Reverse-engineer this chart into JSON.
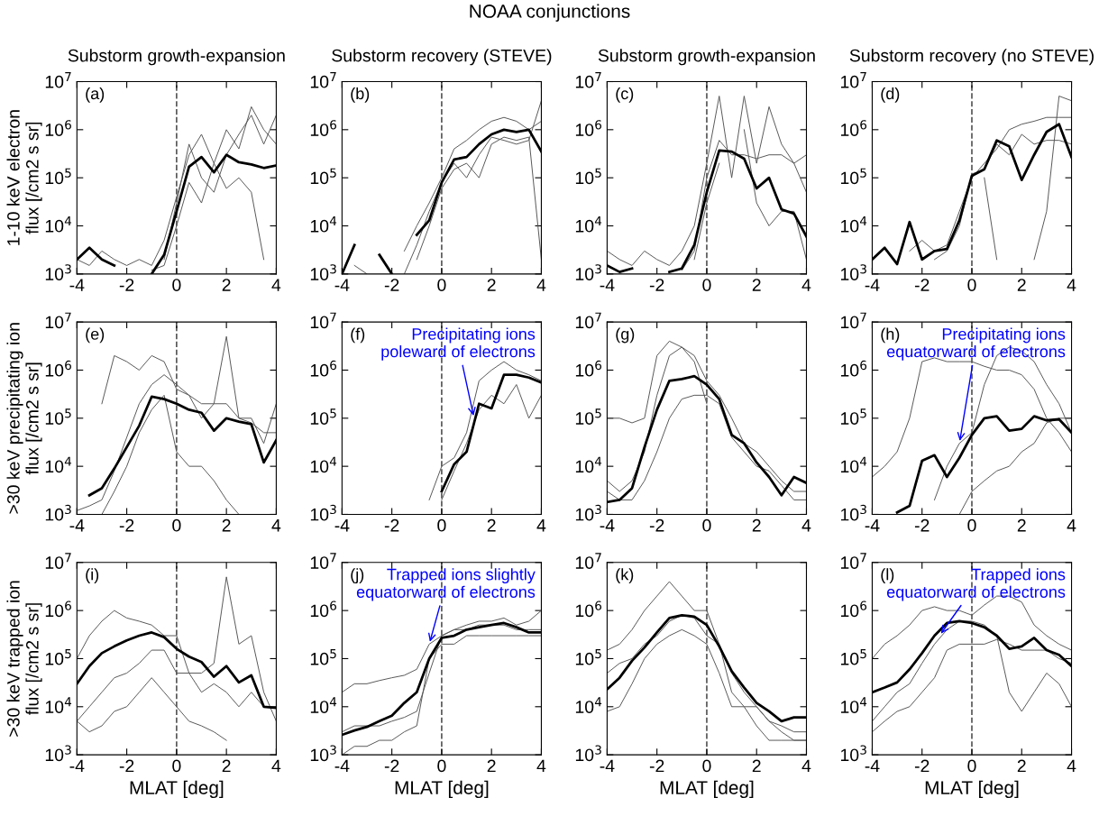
{
  "chart_data": [
    {
      "type": "other",
      "title": "NOAA conjunctions"
    },
    {
      "type": "line",
      "title": "Substorm growth-expansion",
      "ylabel": "1-10 keV electron\nflux [/cm2 s sr]",
      "annotations": [
        "(a)"
      ],
      "log": "y",
      "xlim": [
        -4,
        4
      ],
      "xticks": [
        -4,
        -2,
        0,
        2,
        4
      ],
      "ylim": [
        1000,
        10000000
      ],
      "yticks": [
        {
          "value": 1000,
          "label": "10$^{3}$"
        },
        {
          "value": 10000,
          "label": "10$^{4}$"
        },
        {
          "value": 100000,
          "label": "10$^{5}$"
        },
        {
          "value": 1000000,
          "label": "10$^{6}$"
        },
        {
          "value": 10000000,
          "label": "10$^{7}$"
        }
      ],
      "ref_lines": [
        {
          "axis": "x",
          "value": 0,
          "label": null,
          "color": "#555555",
          "line_style": "dashed"
        }
      ],
      "x": [
        -4,
        -3.5,
        -3,
        -2.5,
        -2,
        -1.5,
        -1,
        -0.5,
        0,
        0.5,
        1,
        1.5,
        2,
        2.5,
        3,
        3.5,
        4
      ],
      "series": [
        {
          "color": "#000000",
          "values": [
            2000.0,
            3500.0,
            2000.0,
            1500.0,
            null,
            null,
            1000.0,
            2500.0,
            20000.0,
            170000.0,
            270000.0,
            130000.0,
            300000.0,
            210000.0,
            190000.0,
            160000.0,
            180000.0
          ]
        },
        {
          "color": "#555555",
          "values": [
            2000.0,
            1500.0,
            3000.0,
            2000.0,
            1500.0,
            2000.0,
            1500.0,
            5000.0,
            40000.0,
            300000.0,
            800000.0,
            200000.0,
            1000000.0,
            400000.0,
            3000000.0,
            1000000.0,
            500000.0
          ]
        },
        {
          "color": "#555555",
          "values": [
            null,
            null,
            null,
            null,
            null,
            null,
            null,
            2000.0,
            30000.0,
            500000.0,
            100000.0,
            50000.0,
            300000.0,
            800000.0,
            2000000.0,
            500000.0,
            2000000.0
          ]
        },
        {
          "color": "#555555",
          "values": [
            null,
            null,
            null,
            null,
            null,
            null,
            1200.0,
            1500.0,
            10000.0,
            80000.0,
            30000.0,
            200000.0,
            60000.0,
            100000.0,
            50000.0,
            2000.0,
            null
          ]
        }
      ]
    },
    {
      "type": "line",
      "title": "Substorm recovery (STEVE)",
      "annotations": [
        "(b)"
      ],
      "log": "y",
      "xlim": [
        -4,
        4
      ],
      "xticks": [
        -4,
        -2,
        0,
        2,
        4
      ],
      "ylim": [
        1000,
        10000000
      ],
      "yticks": [
        {
          "value": 1000,
          "label": "10$^{3}$"
        },
        {
          "value": 10000,
          "label": "10$^{4}$"
        },
        {
          "value": 100000,
          "label": "10$^{5}$"
        },
        {
          "value": 1000000,
          "label": "10$^{6}$"
        },
        {
          "value": 10000000,
          "label": "10$^{7}$"
        }
      ],
      "ref_lines": [
        {
          "axis": "x",
          "value": 0,
          "label": null,
          "color": "#555555",
          "line_style": "dashed"
        }
      ],
      "x": [
        -4,
        -3.5,
        -3,
        -2.5,
        -2,
        -1.5,
        -1,
        -0.5,
        0,
        0.5,
        1,
        1.5,
        2,
        2.5,
        3,
        3.5,
        4
      ],
      "series": [
        {
          "color": "#000000",
          "values": [
            1000.0,
            4000.0,
            null,
            2500.0,
            1000.0,
            null,
            6500.0,
            13000.0,
            80000.0,
            240000.0,
            270000.0,
            500000.0,
            800000.0,
            1000000.0,
            900000.0,
            1000000.0,
            350000.0
          ]
        },
        {
          "color": "#555555",
          "values": [
            null,
            1500.0,
            1000.0,
            null,
            null,
            3000.0,
            10000.0,
            30000.0,
            100000.0,
            400000.0,
            600000.0,
            1000000.0,
            1500000.0,
            1800000.0,
            1500000.0,
            1000000.0,
            1500000.0
          ]
        },
        {
          "color": "#555555",
          "values": [
            null,
            null,
            null,
            null,
            null,
            1000.0,
            4000.0,
            20000.0,
            80000.0,
            200000.0,
            100000.0,
            300000.0,
            700000.0,
            600000.0,
            500000.0,
            600000.0,
            4000000.0
          ]
        },
        {
          "color": "#555555",
          "values": [
            null,
            null,
            null,
            null,
            null,
            null,
            2000.0,
            10000.0,
            60000.0,
            150000.0,
            200000.0,
            100000.0,
            500000.0,
            700000.0,
            600000.0,
            700000.0,
            2000.0
          ]
        }
      ]
    },
    {
      "type": "line",
      "title": "Substorm growth-expansion",
      "annotations": [
        "(c)"
      ],
      "log": "y",
      "xlim": [
        -4,
        4
      ],
      "xticks": [
        -4,
        -2,
        0,
        2,
        4
      ],
      "ylim": [
        1000,
        10000000
      ],
      "yticks": [
        {
          "value": 1000,
          "label": "10$^{3}$"
        },
        {
          "value": 10000,
          "label": "10$^{4}$"
        },
        {
          "value": 100000,
          "label": "10$^{5}$"
        },
        {
          "value": 1000000,
          "label": "10$^{6}$"
        },
        {
          "value": 10000000,
          "label": "10$^{7}$"
        }
      ],
      "ref_lines": [
        {
          "axis": "x",
          "value": 0,
          "label": null,
          "color": "#555555",
          "line_style": "dashed"
        }
      ],
      "x": [
        -4,
        -3.5,
        -3,
        -2.5,
        -2,
        -1.5,
        -1,
        -0.5,
        0,
        0.5,
        1,
        1.5,
        2,
        2.5,
        3,
        3.5,
        4
      ],
      "series": [
        {
          "color": "#000000",
          "values": [
            1500.0,
            1100.0,
            1300.0,
            null,
            null,
            1100.0,
            1300.0,
            4000.0,
            50000.0,
            370000.0,
            350000.0,
            250000.0,
            60000.0,
            100000.0,
            22000.0,
            18000.0,
            6000.0
          ]
        },
        {
          "color": "#555555",
          "values": [
            3000.0,
            2000.0,
            1500.0,
            3000.0,
            2000.0,
            1500.0,
            3000.0,
            10000.0,
            200000.0,
            5000000.0,
            100000.0,
            5000000.0,
            200000.0,
            3000000.0,
            500000.0,
            200000.0,
            50000.0
          ]
        },
        {
          "color": "#555555",
          "values": [
            null,
            null,
            null,
            null,
            null,
            null,
            1200.0,
            3000.0,
            100000.0,
            600000.0,
            300000.0,
            300000.0,
            250000.0,
            300000.0,
            300000.0,
            200000.0,
            300000.0
          ]
        },
        {
          "color": "#555555",
          "values": [
            null,
            null,
            null,
            null,
            null,
            null,
            null,
            2000.0,
            30000.0,
            200000.0,
            null,
            1000000.0,
            30000.0,
            10000.0,
            20000.0,
            20000.0,
            2000.0
          ]
        }
      ]
    },
    {
      "type": "line",
      "title": "Substorm recovery (no STEVE)",
      "annotations": [
        "(d)"
      ],
      "log": "y",
      "xlim": [
        -4,
        4
      ],
      "xticks": [
        -4,
        -2,
        0,
        2,
        4
      ],
      "ylim": [
        1000,
        10000000
      ],
      "yticks": [
        {
          "value": 1000,
          "label": "10$^{3}$"
        },
        {
          "value": 10000,
          "label": "10$^{4}$"
        },
        {
          "value": 100000,
          "label": "10$^{5}$"
        },
        {
          "value": 1000000,
          "label": "10$^{6}$"
        },
        {
          "value": 10000000,
          "label": "10$^{7}$"
        }
      ],
      "ref_lines": [
        {
          "axis": "x",
          "value": 0,
          "label": null,
          "color": "#555555",
          "line_style": "dashed"
        }
      ],
      "x": [
        -4,
        -3.5,
        -3,
        -2.5,
        -2,
        -1.5,
        -1,
        -0.5,
        0,
        0.5,
        1,
        1.5,
        2,
        2.5,
        3,
        3.5,
        4
      ],
      "series": [
        {
          "color": "#000000",
          "values": [
            2000.0,
            3500.0,
            1600.0,
            12000.0,
            2000.0,
            3000.0,
            3300.0,
            13000.0,
            110000.0,
            150000.0,
            600000.0,
            450000.0,
            90000.0,
            300000.0,
            900000.0,
            1300000.0,
            270000.0
          ]
        },
        {
          "color": "#555555",
          "values": [
            null,
            null,
            null,
            3000.0,
            5000.0,
            3000.0,
            4000.0,
            20000.0,
            100000.0,
            200000.0,
            400000.0,
            1000000.0,
            1300000.0,
            1500000.0,
            1800000.0,
            1800000.0,
            1800000.0
          ]
        },
        {
          "color": "#555555",
          "values": [
            null,
            null,
            null,
            null,
            null,
            2000.0,
            3000.0,
            10000.0,
            120000.0,
            150000.0,
            500000.0,
            300000.0,
            800000.0,
            500000.0,
            600000.0,
            600000.0,
            500000.0
          ]
        },
        {
          "color": "#555555",
          "values": [
            null,
            null,
            null,
            null,
            null,
            null,
            null,
            null,
            null,
            100000.0,
            2000.0,
            null,
            null,
            2000.0,
            20000.0,
            5000000.0,
            4000000.0
          ]
        }
      ]
    },
    {
      "type": "line",
      "ylabel": ">30 keV precipitating ion\nflux [/cm2 s sr]",
      "annotations": [
        "(e)"
      ],
      "log": "y",
      "xlim": [
        -4,
        4
      ],
      "xticks": [
        -4,
        -2,
        0,
        2,
        4
      ],
      "ylim": [
        1000,
        10000000
      ],
      "yticks": [
        {
          "value": 1000,
          "label": "10$^{3}$"
        },
        {
          "value": 10000,
          "label": "10$^{4}$"
        },
        {
          "value": 100000,
          "label": "10$^{5}$"
        },
        {
          "value": 1000000,
          "label": "10$^{6}$"
        },
        {
          "value": 10000000,
          "label": "10$^{7}$"
        }
      ],
      "ref_lines": [
        {
          "axis": "x",
          "value": 0,
          "label": null,
          "color": "#555555",
          "line_style": "dashed"
        }
      ],
      "x": [
        -4,
        -3.5,
        -3,
        -2.5,
        -2,
        -1.5,
        -1,
        -0.5,
        0,
        0.5,
        1,
        1.5,
        2,
        2.5,
        3,
        3.5,
        4
      ],
      "series": [
        {
          "color": "#000000",
          "values": [
            null,
            2500.0,
            3500.0,
            9000.0,
            25000.0,
            70000.0,
            280000.0,
            250000.0,
            200000.0,
            150000.0,
            130000.0,
            55000.0,
            100000.0,
            85000.0,
            75000.0,
            12000.0,
            35000.0
          ]
        },
        {
          "color": "#555555",
          "values": [
            null,
            null,
            200000.0,
            2000000.0,
            1500000.0,
            1000000.0,
            2000000.0,
            1500000.0,
            400000.0,
            300000.0,
            100000.0,
            200000.0,
            5000000.0,
            100000.0,
            100000.0,
            30000.0,
            200000.0
          ]
        },
        {
          "color": "#555555",
          "values": [
            1200.0,
            1500.0,
            2000.0,
            8000.0,
            40000.0,
            200000.0,
            500000.0,
            800000.0,
            500000.0,
            300000.0,
            200000.0,
            200000.0,
            200000.0,
            100000.0,
            80000.0,
            50000.0,
            50000.0
          ]
        },
        {
          "color": "#555555",
          "values": [
            null,
            null,
            1000.0,
            3000.0,
            10000.0,
            50000.0,
            150000.0,
            300000.0,
            20000.0,
            10000.0,
            10000.0,
            5000.0,
            2000.0,
            1000.0,
            null,
            null,
            null
          ]
        }
      ]
    },
    {
      "type": "line",
      "annotations": [
        "(f)",
        {
          "text": "Precipitating ions\npoleward of electrons",
          "x": 1.3,
          "y": 100000
        }
      ],
      "log": "y",
      "xlim": [
        -4,
        4
      ],
      "xticks": [
        -4,
        -2,
        0,
        2,
        4
      ],
      "ylim": [
        1000,
        10000000
      ],
      "yticks": [
        {
          "value": 1000,
          "label": "10$^{3}$"
        },
        {
          "value": 10000,
          "label": "10$^{4}$"
        },
        {
          "value": 100000,
          "label": "10$^{5}$"
        },
        {
          "value": 1000000,
          "label": "10$^{6}$"
        },
        {
          "value": 10000000,
          "label": "10$^{7}$"
        }
      ],
      "ref_lines": [
        {
          "axis": "x",
          "value": 0,
          "label": null,
          "color": "#555555",
          "line_style": "dashed"
        }
      ],
      "series": [
        {
          "color": "#000000",
          "x": [
            0,
            0.5,
            1,
            1.5,
            2,
            2.5,
            3,
            3.5,
            4
          ],
          "values": [
            3000.0,
            11000.0,
            20000.0,
            200000.0,
            160000.0,
            800000.0,
            800000.0,
            700000.0,
            550000.0
          ]
        },
        {
          "color": "#555555",
          "x": [
            -0.5,
            0,
            0.5,
            1,
            1.5,
            2,
            2.5,
            3,
            3.5,
            4
          ],
          "values": [
            2000.0,
            10000.0,
            15000.0,
            50000.0,
            600000.0,
            1000000.0,
            1500000.0,
            1000000.0,
            800000.0,
            600000.0
          ]
        },
        {
          "color": "#555555",
          "x": [
            0,
            0.5,
            1,
            1.5,
            2,
            2.5,
            3,
            3.5,
            4
          ],
          "values": [
            2000.0,
            8000.0,
            30000.0,
            150000.0,
            300000.0,
            200000.0,
            500000.0,
            100000.0,
            300000.0
          ]
        }
      ]
    },
    {
      "type": "line",
      "annotations": [
        "(g)"
      ],
      "log": "y",
      "xlim": [
        -4,
        4
      ],
      "xticks": [
        -4,
        -2,
        0,
        2,
        4
      ],
      "ylim": [
        1000,
        10000000
      ],
      "yticks": [
        {
          "value": 1000,
          "label": "10$^{3}$"
        },
        {
          "value": 10000,
          "label": "10$^{4}$"
        },
        {
          "value": 100000,
          "label": "10$^{5}$"
        },
        {
          "value": 1000000,
          "label": "10$^{6}$"
        },
        {
          "value": 10000000,
          "label": "10$^{7}$"
        }
      ],
      "ref_lines": [
        {
          "axis": "x",
          "value": 0,
          "label": null,
          "color": "#555555",
          "line_style": "dashed"
        }
      ],
      "x": [
        -4,
        -3.5,
        -3,
        -2.5,
        -2,
        -1.5,
        -1,
        -0.5,
        0,
        0.5,
        1,
        1.5,
        2,
        2.5,
        3,
        3.5,
        4
      ],
      "series": [
        {
          "color": "#000000",
          "values": [
            1800.0,
            2000.0,
            3500.0,
            25000.0,
            150000.0,
            600000.0,
            650000.0,
            750000.0,
            500000.0,
            250000.0,
            45000.0,
            30000.0,
            12000.0,
            6000.0,
            2500.0,
            6000.0,
            4500.0
          ]
        },
        {
          "color": "#555555",
          "values": [
            100000.0,
            100000.0,
            80000.0,
            100000.0,
            2000000.0,
            4000000.0,
            3000000.0,
            1500000.0,
            200000.0,
            null,
            null,
            null,
            null,
            null,
            null,
            null,
            null
          ]
        },
        {
          "color": "#555555",
          "values": [
            5000.0,
            3000.0,
            5000.0,
            20000.0,
            300000.0,
            2000000.0,
            3000000.0,
            2000000.0,
            600000.0,
            300000.0,
            100000.0,
            30000.0,
            20000.0,
            10000.0,
            5000.0,
            3000.0,
            3000.0
          ]
        },
        {
          "color": "#555555",
          "values": [
            3000.0,
            2000.0,
            2000.0,
            5000.0,
            20000.0,
            100000.0,
            250000.0,
            300000.0,
            300000.0,
            200000.0,
            40000.0,
            20000.0,
            10000.0,
            8000.0,
            4000.0,
            2000.0,
            2000.0
          ]
        }
      ]
    },
    {
      "type": "line",
      "annotations": [
        "(h)",
        {
          "text": "Precipitating ions\nequatorward of electrons",
          "x": -0.5,
          "y": 30000
        }
      ],
      "log": "y",
      "xlim": [
        -4,
        4
      ],
      "xticks": [
        -4,
        -2,
        0,
        2,
        4
      ],
      "ylim": [
        1000,
        10000000
      ],
      "yticks": [
        {
          "value": 1000,
          "label": "10$^{3}$"
        },
        {
          "value": 10000,
          "label": "10$^{4}$"
        },
        {
          "value": 100000,
          "label": "10$^{5}$"
        },
        {
          "value": 1000000,
          "label": "10$^{6}$"
        },
        {
          "value": 10000000,
          "label": "10$^{7}$"
        }
      ],
      "ref_lines": [
        {
          "axis": "x",
          "value": 0,
          "label": null,
          "color": "#555555",
          "line_style": "dashed"
        }
      ],
      "x": [
        -4,
        -3.5,
        -3,
        -2.5,
        -2,
        -1.5,
        -1,
        -0.5,
        0,
        0.5,
        1,
        1.5,
        2,
        2.5,
        3,
        3.5,
        4
      ],
      "series": [
        {
          "color": "#000000",
          "values": [
            null,
            null,
            1100.0,
            1500.0,
            13000.0,
            17000.0,
            6000.0,
            15000.0,
            45000.0,
            100000.0,
            110000.0,
            55000.0,
            60000.0,
            110000.0,
            90000.0,
            95000.0,
            50000.0
          ]
        },
        {
          "color": "#555555",
          "values": [
            6000.0,
            10000.0,
            20000.0,
            100000.0,
            1500000.0,
            1800000.0,
            1500000.0,
            1500000.0,
            1500000.0,
            1200000.0,
            1000000.0,
            1000000.0,
            800000.0,
            400000.0,
            100000.0,
            50000.0,
            20000.0
          ]
        },
        {
          "color": "#555555",
          "values": [
            null,
            null,
            null,
            null,
            null,
            2000.0,
            10000.0,
            30000.0,
            50000.0,
            500000.0,
            2000000.0,
            3000000.0,
            2500000.0,
            1500000.0,
            500000.0,
            200000.0,
            50000.0
          ]
        },
        {
          "color": "#555555",
          "values": [
            null,
            null,
            null,
            null,
            null,
            null,
            null,
            1000.0,
            3000.0,
            5000.0,
            8000.0,
            10000.0,
            20000.0,
            30000.0,
            80000.0,
            100000.0,
            100000.0
          ]
        }
      ]
    },
    {
      "type": "line",
      "ylabel": ">30 keV trapped ion\nflux [/cm2 s sr]",
      "xlabel": "MLAT [deg]",
      "annotations": [
        "(i)"
      ],
      "log": "y",
      "xlim": [
        -4,
        4
      ],
      "xticks": [
        -4,
        -2,
        0,
        2,
        4
      ],
      "ylim": [
        1000,
        10000000
      ],
      "yticks": [
        {
          "value": 1000,
          "label": "10$^{3}$"
        },
        {
          "value": 10000,
          "label": "10$^{4}$"
        },
        {
          "value": 100000,
          "label": "10$^{5}$"
        },
        {
          "value": 1000000,
          "label": "10$^{6}$"
        },
        {
          "value": 10000000,
          "label": "10$^{7}$"
        }
      ],
      "ref_lines": [
        {
          "axis": "x",
          "value": 0,
          "label": null,
          "color": "#555555",
          "line_style": "dashed"
        }
      ],
      "x": [
        -4,
        -3.5,
        -3,
        -2.5,
        -2,
        -1.5,
        -1,
        -0.5,
        0,
        0.5,
        1,
        1.5,
        2,
        2.5,
        3,
        3.5,
        4
      ],
      "series": [
        {
          "color": "#000000",
          "values": [
            30000.0,
            70000.0,
            130000.0,
            180000.0,
            240000.0,
            300000.0,
            350000.0,
            280000.0,
            160000.0,
            110000.0,
            85000.0,
            42000.0,
            70000.0,
            32000.0,
            45000.0,
            10000.0,
            9500.0
          ]
        },
        {
          "color": "#555555",
          "values": [
            100000.0,
            300000.0,
            600000.0,
            1000000.0,
            700000.0,
            600000.0,
            500000.0,
            300000.0,
            300000.0,
            50000.0,
            50000.0,
            80000.0,
            5000000.0,
            200000.0,
            300000.0,
            20000.0,
            5000.0
          ]
        },
        {
          "color": "#555555",
          "values": [
            5000.0,
            10000.0,
            20000.0,
            40000.0,
            50000.0,
            80000.0,
            150000.0,
            150000.0,
            50000.0,
            50000.0,
            20000.0,
            30000.0,
            20000.0,
            10000.0,
            20000.0,
            10000.0,
            10000.0
          ]
        },
        {
          "color": "#555555",
          "values": [
            5000.0,
            3000.0,
            4000.0,
            8000.0,
            10000.0,
            20000.0,
            40000.0,
            20000.0,
            10000.0,
            5000.0,
            4000.0,
            3000.0,
            2000.0,
            null,
            null,
            null,
            null
          ]
        }
      ]
    },
    {
      "type": "line",
      "xlabel": "MLAT [deg]",
      "annotations": [
        "(j)",
        {
          "text": "Trapped ions slightly\nequatorward of electrons",
          "x": -0.5,
          "y": 200000
        }
      ],
      "log": "y",
      "xlim": [
        -4,
        4
      ],
      "xticks": [
        -4,
        -2,
        0,
        2,
        4
      ],
      "ylim": [
        1000,
        10000000
      ],
      "yticks": [
        {
          "value": 1000,
          "label": "10$^{3}$"
        },
        {
          "value": 10000,
          "label": "10$^{4}$"
        },
        {
          "value": 100000,
          "label": "10$^{5}$"
        },
        {
          "value": 1000000,
          "label": "10$^{6}$"
        },
        {
          "value": 10000000,
          "label": "10$^{7}$"
        }
      ],
      "ref_lines": [
        {
          "axis": "x",
          "value": 0,
          "label": null,
          "color": "#555555",
          "line_style": "dashed"
        }
      ],
      "x": [
        -4,
        -3.5,
        -3,
        -2.5,
        -2,
        -1.5,
        -1,
        -0.5,
        0,
        0.5,
        1,
        1.5,
        2,
        2.5,
        3,
        3.5,
        4
      ],
      "series": [
        {
          "color": "#000000",
          "values": [
            2600.0,
            3200.0,
            3800.0,
            5000.0,
            6500.0,
            12000.0,
            20000.0,
            100000.0,
            270000.0,
            300000.0,
            400000.0,
            450000.0,
            500000.0,
            550000.0,
            450000.0,
            350000.0,
            350000.0
          ]
        },
        {
          "color": "#555555",
          "values": [
            20000.0,
            30000.0,
            30000.0,
            35000.0,
            40000.0,
            45000.0,
            60000.0,
            200000.0,
            300000.0,
            400000.0,
            500000.0,
            600000.0,
            600000.0,
            700000.0,
            500000.0,
            600000.0,
            1000000.0
          ]
        },
        {
          "color": "#555555",
          "values": [
            3000.0,
            4000.0,
            4000.0,
            4000.0,
            5000.0,
            6000.0,
            8000.0,
            50000.0,
            300000.0,
            400000.0,
            400000.0,
            500000.0,
            500000.0,
            500000.0,
            400000.0,
            400000.0,
            400000.0
          ]
        },
        {
          "color": "#555555",
          "values": [
            1000.0,
            1500.0,
            1500.0,
            2000.0,
            2000.0,
            3000.0,
            4000.0,
            100000.0,
            200000.0,
            200000.0,
            300000.0,
            300000.0,
            300000.0,
            300000.0,
            300000.0,
            300000.0,
            300000.0
          ]
        }
      ]
    },
    {
      "type": "line",
      "xlabel": "MLAT [deg]",
      "annotations": [
        "(k)"
      ],
      "log": "y",
      "xlim": [
        -4,
        4
      ],
      "xticks": [
        -4,
        -2,
        0,
        2,
        4
      ],
      "ylim": [
        1000,
        10000000
      ],
      "yticks": [
        {
          "value": 1000,
          "label": "10$^{3}$"
        },
        {
          "value": 10000,
          "label": "10$^{4}$"
        },
        {
          "value": 100000,
          "label": "10$^{5}$"
        },
        {
          "value": 1000000,
          "label": "10$^{6}$"
        },
        {
          "value": 10000000,
          "label": "10$^{7}$"
        }
      ],
      "ref_lines": [
        {
          "axis": "x",
          "value": 0,
          "label": null,
          "color": "#555555",
          "line_style": "dashed"
        }
      ],
      "x": [
        -4,
        -3.5,
        -3,
        -2.5,
        -2,
        -1.5,
        -1,
        -0.5,
        0,
        0.5,
        1,
        1.5,
        2,
        2.5,
        3,
        3.5,
        4
      ],
      "series": [
        {
          "color": "#000000",
          "values": [
            23000.0,
            40000.0,
            90000.0,
            170000.0,
            350000.0,
            700000.0,
            800000.0,
            750000.0,
            500000.0,
            180000.0,
            55000.0,
            25000.0,
            12000.0,
            8000.0,
            5000.0,
            6000.0,
            6000.0
          ]
        },
        {
          "color": "#555555",
          "values": [
            150000.0,
            200000.0,
            400000.0,
            1000000.0,
            2000000.0,
            4000000.0,
            2000000.0,
            1000000.0,
            1000000.0,
            200000.0,
            20000.0,
            10000.0,
            10000.0,
            5000.0,
            4000.0,
            3000.0,
            3000.0
          ]
        },
        {
          "color": "#555555",
          "values": [
            50000.0,
            80000.0,
            100000.0,
            200000.0,
            300000.0,
            600000.0,
            800000.0,
            700000.0,
            300000.0,
            200000.0,
            50000.0,
            20000.0,
            10000.0,
            5000.0,
            3000.0,
            2000.0,
            2000.0
          ]
        },
        {
          "color": "#555555",
          "values": [
            8000.0,
            10000.0,
            30000.0,
            100000.0,
            200000.0,
            300000.0,
            400000.0,
            300000.0,
            200000.0,
            50000.0,
            10000.0,
            10000.0,
            4000.0,
            2000.0,
            2000.0,
            2000.0,
            2000.0
          ]
        }
      ]
    },
    {
      "type": "line",
      "xlabel": "MLAT [deg]",
      "annotations": [
        "(l)",
        {
          "text": "Trapped ions\nequatorward of electrons",
          "x": -1.3,
          "y": 300000
        }
      ],
      "log": "y",
      "xlim": [
        -4,
        4
      ],
      "xticks": [
        -4,
        -2,
        0,
        2,
        4
      ],
      "ylim": [
        1000,
        10000000
      ],
      "yticks": [
        {
          "value": 1000,
          "label": "10$^{3}$"
        },
        {
          "value": 10000,
          "label": "10$^{4}$"
        },
        {
          "value": 100000,
          "label": "10$^{5}$"
        },
        {
          "value": 1000000,
          "label": "10$^{6}$"
        },
        {
          "value": 10000000,
          "label": "10$^{7}$"
        }
      ],
      "ref_lines": [
        {
          "axis": "x",
          "value": 0,
          "label": null,
          "color": "#555555",
          "line_style": "dashed"
        }
      ],
      "x": [
        -4,
        -3.5,
        -3,
        -2.5,
        -2,
        -1.5,
        -1,
        -0.5,
        0,
        0.5,
        1,
        1.5,
        2,
        2.5,
        3,
        3.5,
        4
      ],
      "series": [
        {
          "color": "#000000",
          "values": [
            20000.0,
            25000.0,
            32000.0,
            60000.0,
            130000.0,
            300000.0,
            550000.0,
            600000.0,
            550000.0,
            450000.0,
            300000.0,
            160000.0,
            180000.0,
            270000.0,
            150000.0,
            120000.0,
            70000.0
          ]
        },
        {
          "color": "#555555",
          "values": [
            100000.0,
            200000.0,
            300000.0,
            500000.0,
            1000000.0,
            1200000.0,
            1000000.0,
            1000000.0,
            800000.0,
            1300000.0,
            2000000.0,
            2000000.0,
            1500000.0,
            500000.0,
            300000.0,
            200000.0,
            150000.0
          ]
        },
        {
          "color": "#555555",
          "values": [
            5000.0,
            10000.0,
            20000.0,
            30000.0,
            80000.0,
            200000.0,
            400000.0,
            600000.0,
            600000.0,
            500000.0,
            300000.0,
            20000.0,
            8000.0,
            20000.0,
            50000.0,
            30000.0,
            10000.0
          ]
        },
        {
          "color": "#555555",
          "values": [
            3000.0,
            5000.0,
            8000.0,
            10000.0,
            20000.0,
            40000.0,
            150000.0,
            200000.0,
            200000.0,
            200000.0,
            250000.0,
            200000.0,
            150000.0,
            150000.0,
            150000.0,
            100000.0,
            80000.0
          ]
        }
      ]
    }
  ]
}
